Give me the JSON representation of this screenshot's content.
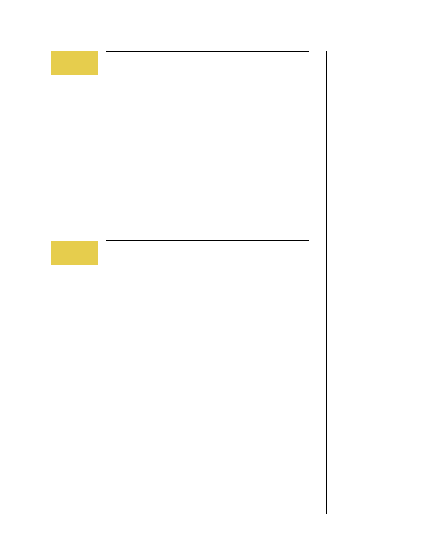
{
  "colors": {
    "tab_yellow": "#e6cd4d",
    "rule_black": "#000000",
    "page_background": "#ffffff"
  },
  "sections": [
    {
      "tab_label": ""
    },
    {
      "tab_label": ""
    }
  ]
}
